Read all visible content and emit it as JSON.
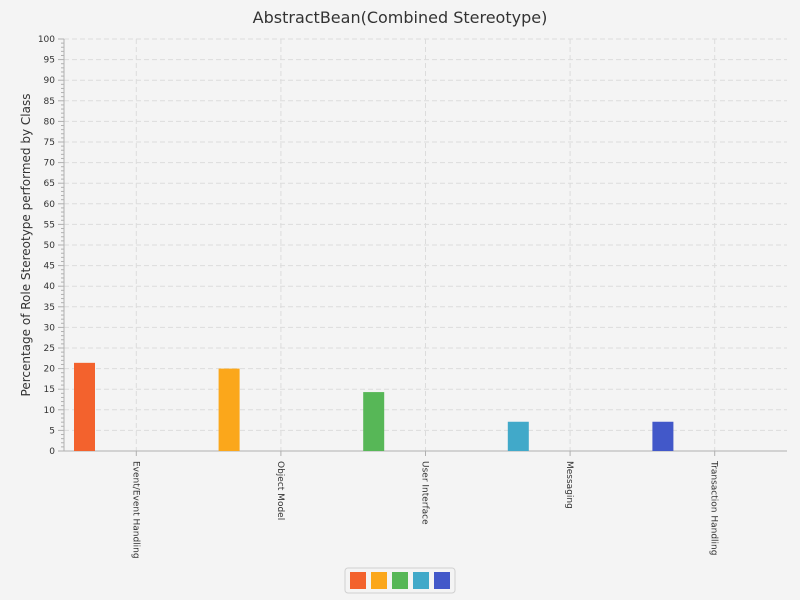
{
  "chart_data": {
    "type": "bar",
    "title": "AbstractBean(Combined Stereotype)",
    "xlabel": "",
    "ylabel": "Percentage of Role Stereotype performed by Class",
    "ylim": [
      0,
      100
    ],
    "ytick_step": 5,
    "grid": true,
    "categories": [
      "Event/Event Handling",
      "Object Model",
      "User Interface",
      "Messaging",
      "Transaction Handling"
    ],
    "values": [
      21.4,
      20.0,
      14.3,
      7.1,
      7.1
    ],
    "colors": [
      "#f3622d",
      "#fba71b",
      "#57b757",
      "#41a9c9",
      "#4258c9"
    ],
    "legend_position": "bottom-center",
    "legend": {
      "entries": [
        {
          "color": "#f3622d"
        },
        {
          "color": "#fba71b"
        },
        {
          "color": "#57b757"
        },
        {
          "color": "#41a9c9"
        },
        {
          "color": "#4258c9"
        }
      ]
    }
  }
}
